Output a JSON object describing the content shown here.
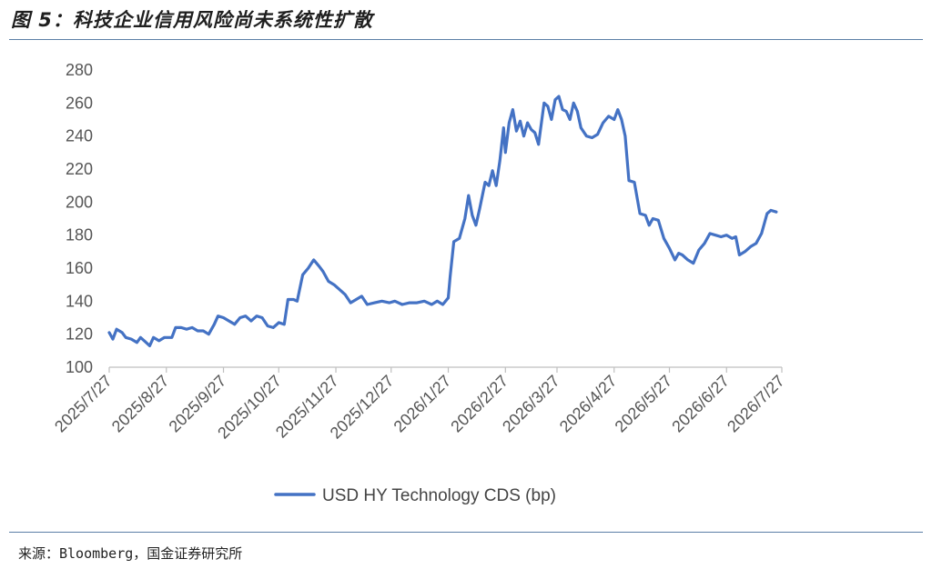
{
  "header": {
    "title": "图 5：科技企业信用风险尚未系统性扩散"
  },
  "footer": {
    "source": "来源：Bloomberg，国金证券研究所"
  },
  "colors": {
    "series": "#4472C4",
    "rule": "#5b7fa6",
    "axis": "#bfbfbf"
  },
  "chart_data": {
    "type": "line",
    "title": "",
    "xlabel": "",
    "ylabel": "",
    "ylim": [
      100,
      280
    ],
    "yticks": [
      100,
      120,
      140,
      160,
      180,
      200,
      220,
      240,
      260,
      280
    ],
    "xlim": [
      "2025/7/27",
      "2026/7/27"
    ],
    "xticks": [
      "2025/7/27",
      "2025/8/27",
      "2025/9/27",
      "2025/10/27",
      "2025/11/27",
      "2025/12/27",
      "2026/1/27",
      "2026/2/27",
      "2026/3/27",
      "2026/4/27",
      "2026/5/27",
      "2026/6/27",
      "2026/7/27"
    ],
    "grid": false,
    "legend": "bottom",
    "series": [
      {
        "name": "USD HY Technology CDS (bp)",
        "points": [
          [
            "2025-07-27",
            121
          ],
          [
            "2025-07-29",
            117
          ],
          [
            "2025-07-31",
            123
          ],
          [
            "2025-08-03",
            121
          ],
          [
            "2025-08-05",
            118
          ],
          [
            "2025-08-08",
            117
          ],
          [
            "2025-08-11",
            115
          ],
          [
            "2025-08-13",
            118
          ],
          [
            "2025-08-15",
            116
          ],
          [
            "2025-08-18",
            113
          ],
          [
            "2025-08-20",
            118
          ],
          [
            "2025-08-23",
            116
          ],
          [
            "2025-08-26",
            118
          ],
          [
            "2025-08-30",
            118
          ],
          [
            "2025-09-01",
            124
          ],
          [
            "2025-09-04",
            124
          ],
          [
            "2025-09-07",
            123
          ],
          [
            "2025-09-10",
            124
          ],
          [
            "2025-09-13",
            122
          ],
          [
            "2025-09-16",
            122
          ],
          [
            "2025-09-19",
            120
          ],
          [
            "2025-09-22",
            126
          ],
          [
            "2025-09-24",
            131
          ],
          [
            "2025-09-27",
            130
          ],
          [
            "2025-09-30",
            128
          ],
          [
            "2025-10-03",
            126
          ],
          [
            "2025-10-06",
            130
          ],
          [
            "2025-10-09",
            131
          ],
          [
            "2025-10-12",
            128
          ],
          [
            "2025-10-15",
            131
          ],
          [
            "2025-10-18",
            130
          ],
          [
            "2025-10-21",
            125
          ],
          [
            "2025-10-24",
            124
          ],
          [
            "2025-10-27",
            127
          ],
          [
            "2025-10-30",
            126
          ],
          [
            "2025-11-01",
            141
          ],
          [
            "2025-11-04",
            141
          ],
          [
            "2025-11-06",
            140
          ],
          [
            "2025-11-09",
            156
          ],
          [
            "2025-11-12",
            160
          ],
          [
            "2025-11-15",
            165
          ],
          [
            "2025-11-18",
            161
          ],
          [
            "2025-11-20",
            158
          ],
          [
            "2025-11-23",
            152
          ],
          [
            "2025-11-26",
            150
          ],
          [
            "2025-11-29",
            147
          ],
          [
            "2025-12-02",
            144
          ],
          [
            "2025-12-05",
            139
          ],
          [
            "2025-12-08",
            141
          ],
          [
            "2025-12-11",
            143
          ],
          [
            "2025-12-14",
            138
          ],
          [
            "2025-12-18",
            139
          ],
          [
            "2025-12-22",
            140
          ],
          [
            "2025-12-26",
            139
          ],
          [
            "2025-12-29",
            140
          ],
          [
            "2026-01-02",
            138
          ],
          [
            "2026-01-06",
            139
          ],
          [
            "2026-01-10",
            139
          ],
          [
            "2026-01-14",
            140
          ],
          [
            "2026-01-18",
            138
          ],
          [
            "2026-01-21",
            140
          ],
          [
            "2026-01-24",
            138
          ],
          [
            "2026-01-27",
            142
          ],
          [
            "2026-01-28",
            155
          ],
          [
            "2026-01-30",
            176
          ],
          [
            "2026-02-02",
            178
          ],
          [
            "2026-02-05",
            190
          ],
          [
            "2026-02-07",
            204
          ],
          [
            "2026-02-09",
            192
          ],
          [
            "2026-02-11",
            186
          ],
          [
            "2026-02-13",
            196
          ],
          [
            "2026-02-16",
            212
          ],
          [
            "2026-02-18",
            210
          ],
          [
            "2026-02-20",
            219
          ],
          [
            "2026-02-22",
            210
          ],
          [
            "2026-02-24",
            225
          ],
          [
            "2026-02-26",
            245
          ],
          [
            "2026-02-27",
            230
          ],
          [
            "2026-03-01",
            248
          ],
          [
            "2026-03-03",
            256
          ],
          [
            "2026-03-05",
            243
          ],
          [
            "2026-03-07",
            249
          ],
          [
            "2026-03-09",
            240
          ],
          [
            "2026-03-11",
            248
          ],
          [
            "2026-03-13",
            244
          ],
          [
            "2026-03-15",
            242
          ],
          [
            "2026-03-17",
            235
          ],
          [
            "2026-03-20",
            260
          ],
          [
            "2026-03-22",
            258
          ],
          [
            "2026-03-24",
            250
          ],
          [
            "2026-03-26",
            262
          ],
          [
            "2026-03-28",
            264
          ],
          [
            "2026-03-30",
            256
          ],
          [
            "2026-04-01",
            255
          ],
          [
            "2026-04-03",
            250
          ],
          [
            "2026-04-05",
            260
          ],
          [
            "2026-04-07",
            255
          ],
          [
            "2026-04-09",
            245
          ],
          [
            "2026-04-12",
            240
          ],
          [
            "2026-04-15",
            239
          ],
          [
            "2026-04-18",
            241
          ],
          [
            "2026-04-21",
            248
          ],
          [
            "2026-04-24",
            252
          ],
          [
            "2026-04-27",
            250
          ],
          [
            "2026-04-29",
            256
          ],
          [
            "2026-05-01",
            250
          ],
          [
            "2026-05-03",
            240
          ],
          [
            "2026-05-05",
            213
          ],
          [
            "2026-05-08",
            212
          ],
          [
            "2026-05-11",
            193
          ],
          [
            "2026-05-14",
            192
          ],
          [
            "2026-05-16",
            186
          ],
          [
            "2026-05-18",
            190
          ],
          [
            "2026-05-21",
            189
          ],
          [
            "2026-05-24",
            178
          ],
          [
            "2026-05-27",
            172
          ],
          [
            "2026-05-30",
            165
          ],
          [
            "2026-06-01",
            169
          ],
          [
            "2026-06-03",
            168
          ],
          [
            "2026-06-06",
            165
          ],
          [
            "2026-06-09",
            163
          ],
          [
            "2026-06-12",
            171
          ],
          [
            "2026-06-15",
            175
          ],
          [
            "2026-06-18",
            181
          ],
          [
            "2026-06-21",
            180
          ],
          [
            "2026-06-24",
            179
          ],
          [
            "2026-06-27",
            180
          ],
          [
            "2026-06-30",
            178
          ],
          [
            "2026-07-02",
            179
          ],
          [
            "2026-07-04",
            168
          ],
          [
            "2026-07-07",
            170
          ],
          [
            "2026-07-10",
            173
          ],
          [
            "2026-07-13",
            175
          ],
          [
            "2026-07-16",
            181
          ],
          [
            "2026-07-19",
            193
          ],
          [
            "2026-07-21",
            195
          ],
          [
            "2026-07-24",
            194
          ]
        ]
      }
    ]
  }
}
